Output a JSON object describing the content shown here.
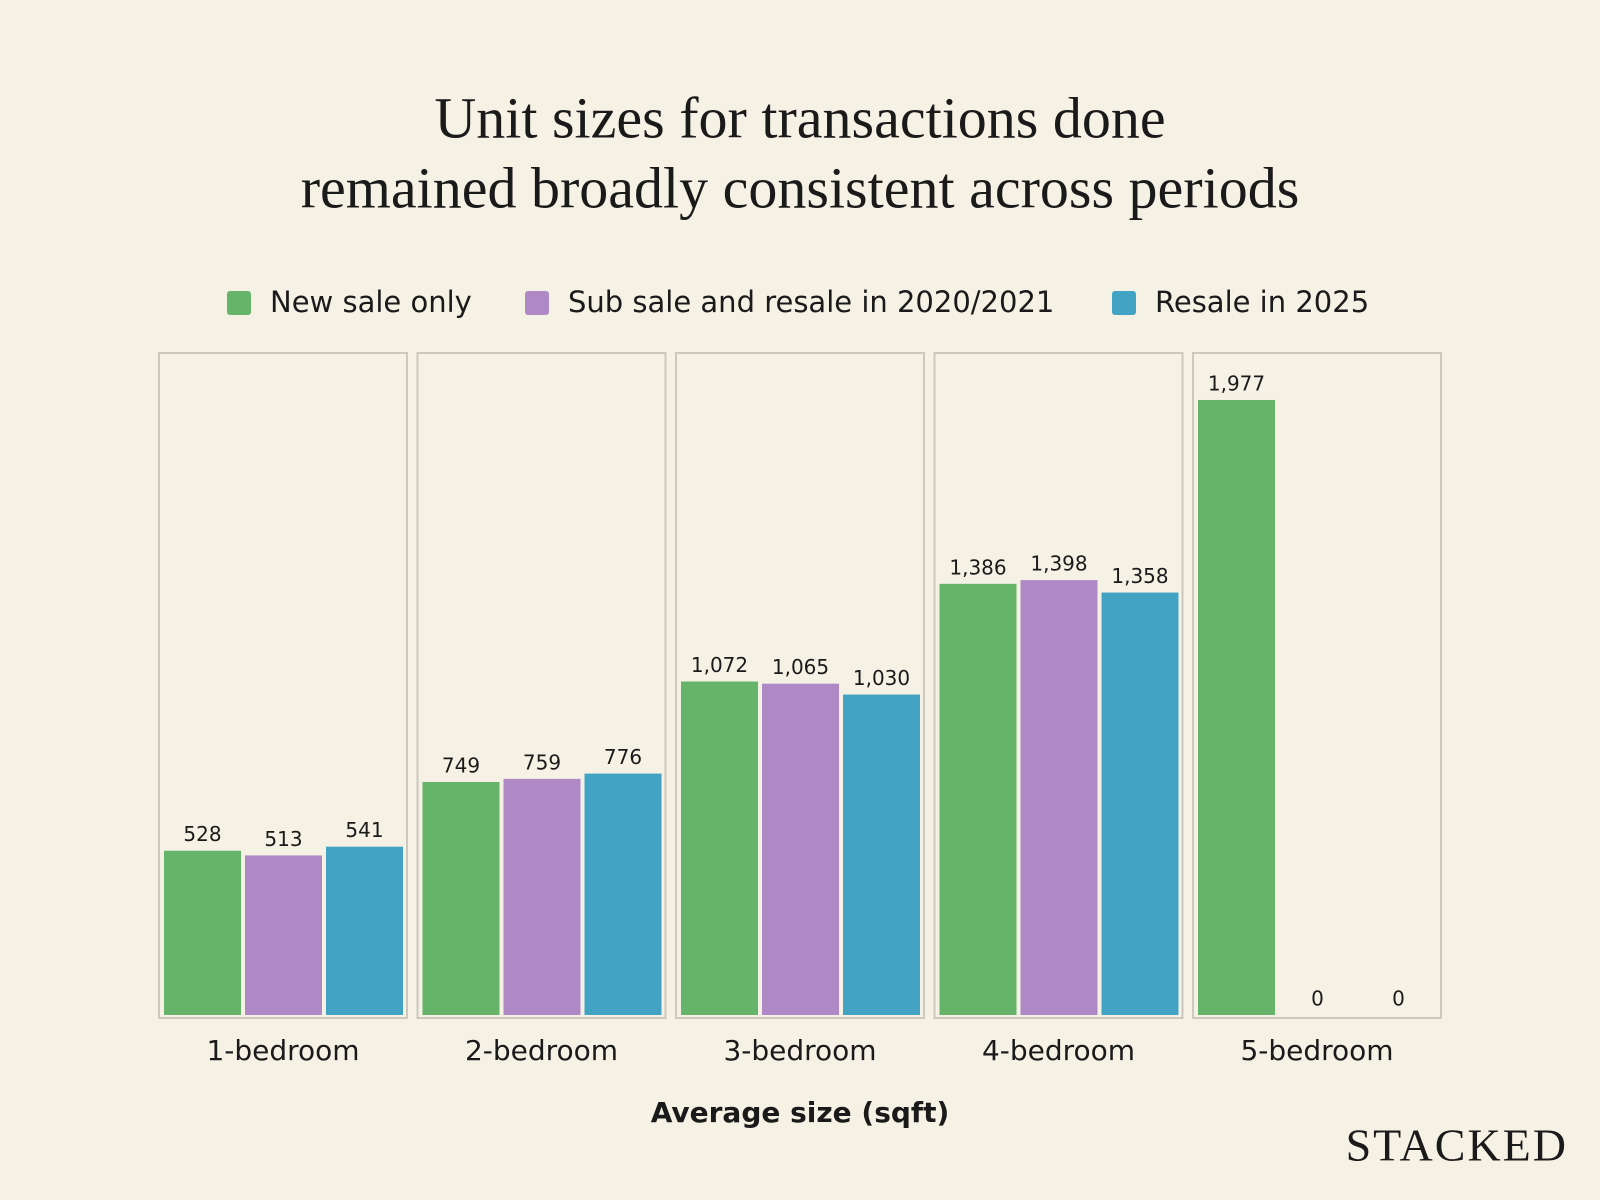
{
  "chart_data": {
    "type": "bar",
    "title": [
      "Unit sizes for transactions done",
      "remained broadly consistent across periods"
    ],
    "x_label": "Average size (sqft)",
    "categories": [
      "1-bedroom",
      "2-bedroom",
      "3-bedroom",
      "4-bedroom",
      "5-bedroom"
    ],
    "series": [
      {
        "name": "New sale only",
        "color": "#66b36a",
        "values": [
          528,
          749,
          1072,
          1386,
          1977
        ],
        "value_labels": [
          "528",
          "749",
          "1,072",
          "1,386",
          "1,977"
        ]
      },
      {
        "name": "Sub sale and resale in 2020/2021",
        "color": "#ae89c6",
        "values": [
          513,
          759,
          1065,
          1398,
          0
        ],
        "value_labels": [
          "513",
          "759",
          "1,065",
          "1,398",
          "0"
        ]
      },
      {
        "name": "Resale in 2025",
        "color": "#41a2c4",
        "values": [
          541,
          776,
          1030,
          1358,
          0
        ],
        "value_labels": [
          "541",
          "776",
          "1,030",
          "1,358",
          "0"
        ]
      }
    ],
    "ylim": [
      0,
      2128
    ],
    "legend": "top"
  },
  "brand": "STACKED"
}
